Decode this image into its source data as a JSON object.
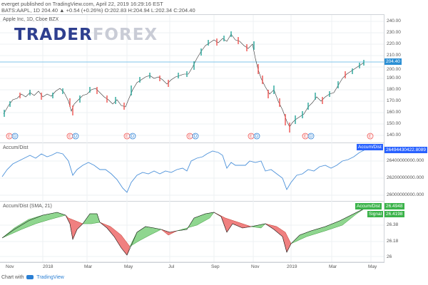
{
  "header": {
    "line1": "everget published on TradingView.com, April 22, 2019 16:29:16 EST",
    "line2": "BATS:AAPL, 1D 204.40 ▲ +0.54 (+0.26%) O:202.83 H:204.94 L:202.34 C:204.40"
  },
  "watermark": {
    "part1": "TRADER",
    "part2": "FOREX"
  },
  "main_panel": {
    "title": "Apple Inc, 1D, Cboe BZX",
    "price_axis": [
      "240.00",
      "230.00",
      "220.00",
      "210.00",
      "200.00",
      "190.00",
      "180.00",
      "170.00",
      "160.00",
      "150.00",
      "140.00"
    ],
    "last_price": "204.40",
    "event_markers": [
      "E",
      "D",
      "E",
      "D",
      "E",
      "D",
      "E",
      "D",
      "E",
      "D",
      "E",
      "D",
      "E"
    ]
  },
  "accum_panel": {
    "title": "Accum/Dist",
    "axis": [
      "26400000000.000",
      "26200000000.000",
      "26000000000.000"
    ],
    "tag": "26494430422.8089"
  },
  "sma_panel": {
    "title": "Accum/Dist (SMA, 21)",
    "axis": [
      "26.38",
      "26.18",
      "26"
    ],
    "tag1_label": "Accum/Dist",
    "tag1_value": "26.4948",
    "tag2_label": "Signal",
    "tag2_value": "26.4198"
  },
  "time_axis": [
    "Nov",
    "2018",
    "Mar",
    "May",
    "Jul",
    "Sep",
    "Nov",
    "2019",
    "Mar",
    "May"
  ],
  "footer": {
    "prefix": "Chart with",
    "brand": "TradingView"
  },
  "colors": {
    "up": "#26a69a",
    "down": "#ef5350",
    "accum_line": "#4a90d9",
    "sma_line": "#1a1a1a",
    "fill_up": "#8fd68f",
    "fill_down": "#f08080",
    "tag_blue": "#2962ff",
    "tag_green": "#3bb34a",
    "last_price_bg": "#2b8fd4"
  }
}
